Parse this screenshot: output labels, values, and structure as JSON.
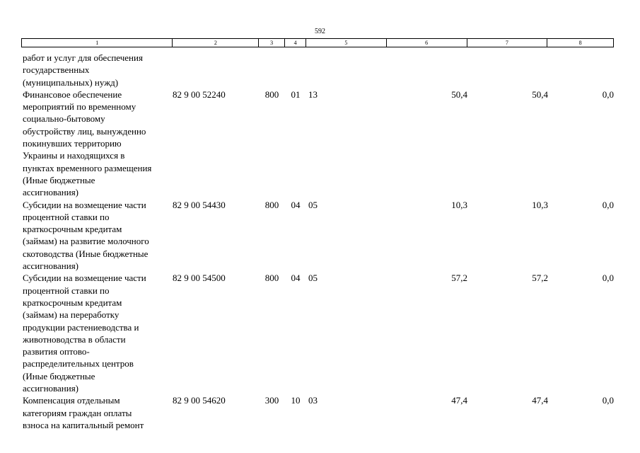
{
  "page_number": "592",
  "column_headers": [
    "1",
    "2",
    "3",
    "4",
    "5",
    "6",
    "7",
    "8"
  ],
  "rows": [
    {
      "name_lines": [
        "работ и услуг для обеспечения",
        "государственных",
        "(муниципальных) нужд)"
      ],
      "code": "",
      "c3": "",
      "c4": "",
      "c5": "",
      "c6": "",
      "c7": "",
      "c8": ""
    },
    {
      "name_lines": [
        "Финансовое обеспечение",
        "мероприятий по временному",
        "социально-бытовому",
        "обустройству лиц, вынужденно",
        "покинувших территорию",
        "Украины и находящихся в",
        "пунктах временного размещения",
        "(Иные бюджетные",
        "ассигнования)"
      ],
      "code": "82 9 00 52240",
      "c3": "800",
      "c4": "01",
      "c5": "13",
      "c6": "50,4",
      "c7": "50,4",
      "c8": "0,0"
    },
    {
      "name_lines": [
        "Субсидии на возмещение части",
        "процентной ставки по",
        "краткосрочным кредитам",
        "(займам) на развитие молочного",
        "скотоводства (Иные бюджетные",
        "ассигнования)"
      ],
      "code": "82 9 00 54430",
      "c3": "800",
      "c4": "04",
      "c5": "05",
      "c6": "10,3",
      "c7": "10,3",
      "c8": "0,0"
    },
    {
      "name_lines": [
        "Субсидии на возмещение части",
        "процентной ставки по",
        "краткосрочным кредитам",
        "(займам) на переработку",
        "продукции растениеводства и",
        "животноводства в области",
        "развития оптово-",
        "распределительных центров",
        "(Иные бюджетные",
        "ассигнования)"
      ],
      "code": "82 9 00 54500",
      "c3": "800",
      "c4": "04",
      "c5": "05",
      "c6": "57,2",
      "c7": "57,2",
      "c8": "0,0"
    },
    {
      "name_lines": [
        "Компенсация отдельным",
        "категориям граждан оплаты",
        "взноса на капитальный ремонт"
      ],
      "code": "82 9 00 54620",
      "c3": "300",
      "c4": "10",
      "c5": "03",
      "c6": "47,4",
      "c7": "47,4",
      "c8": "0,0"
    }
  ]
}
